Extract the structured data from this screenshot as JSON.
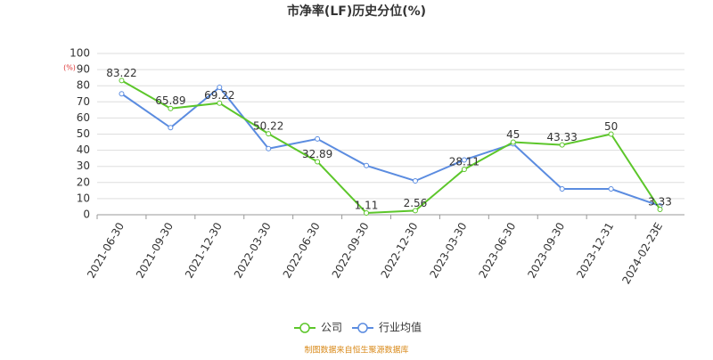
{
  "chart_data": {
    "type": "line",
    "title": "市净率(LF)历史分位(%)",
    "y_label": "(%)",
    "categories": [
      "2021-06-30",
      "2021-09-30",
      "2021-12-30",
      "2022-03-30",
      "2022-06-30",
      "2022-09-30",
      "2022-12-30",
      "2023-03-30",
      "2023-06-30",
      "2023-09-30",
      "2023-12-31",
      "2024-02-23E"
    ],
    "series": [
      {
        "name": "公司",
        "color": "#5cc62a",
        "values": [
          83.22,
          65.89,
          69.22,
          50.22,
          32.89,
          1.11,
          2.56,
          28.11,
          45,
          43.33,
          50,
          3.33
        ]
      },
      {
        "name": "行业均值",
        "color": "#5b8ce0",
        "values": [
          75,
          54,
          79,
          41,
          47,
          30.5,
          21,
          34,
          44,
          16,
          16,
          5.5
        ]
      }
    ],
    "ylim": [
      0,
      100
    ],
    "yticks": [
      0,
      10,
      20,
      30,
      40,
      50,
      60,
      70,
      80,
      90,
      100
    ],
    "grid": true,
    "source": "制图数据来自恒生聚源数据库"
  }
}
